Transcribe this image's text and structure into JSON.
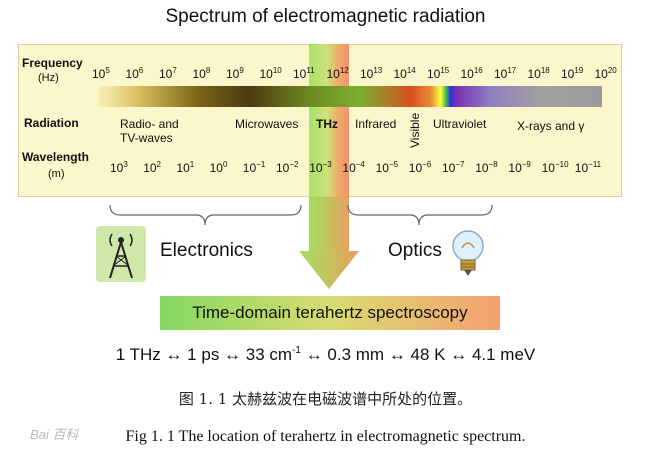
{
  "title": "Spectrum of electromagnetic radiation",
  "frequency_label": "Frequency",
  "frequency_unit": "(Hz)",
  "radiation_label": "Radiation",
  "wavelength_label": "Wavelength",
  "wavelength_unit": "(m)",
  "freq_ticks": [
    {
      "base": "10",
      "exp": "5"
    },
    {
      "base": "10",
      "exp": "6"
    },
    {
      "base": "10",
      "exp": "7"
    },
    {
      "base": "10",
      "exp": "8"
    },
    {
      "base": "10",
      "exp": "9"
    },
    {
      "base": "10",
      "exp": "10"
    },
    {
      "base": "10",
      "exp": "11"
    },
    {
      "base": "10",
      "exp": "12"
    },
    {
      "base": "10",
      "exp": "13"
    },
    {
      "base": "10",
      "exp": "14"
    },
    {
      "base": "10",
      "exp": "15"
    },
    {
      "base": "10",
      "exp": "16"
    },
    {
      "base": "10",
      "exp": "17"
    },
    {
      "base": "10",
      "exp": "18"
    },
    {
      "base": "10",
      "exp": "19"
    },
    {
      "base": "10",
      "exp": "20"
    }
  ],
  "wave_ticks": [
    {
      "base": "10",
      "exp": "3"
    },
    {
      "base": "10",
      "exp": "2"
    },
    {
      "base": "10",
      "exp": "1"
    },
    {
      "base": "10",
      "exp": "0"
    },
    {
      "base": "10",
      "exp": "−1"
    },
    {
      "base": "10",
      "exp": "−2"
    },
    {
      "base": "10",
      "exp": "−3"
    },
    {
      "base": "10",
      "exp": "−4"
    },
    {
      "base": "10",
      "exp": "−5"
    },
    {
      "base": "10",
      "exp": "−6"
    },
    {
      "base": "10",
      "exp": "−7"
    },
    {
      "base": "10",
      "exp": "−8"
    },
    {
      "base": "10",
      "exp": "−9"
    },
    {
      "base": "10",
      "exp": "−10"
    },
    {
      "base": "10",
      "exp": "−11"
    }
  ],
  "radiation": {
    "radio": "Radio- and",
    "tv": "TV-waves",
    "microwaves": "Microwaves",
    "thz": "THz",
    "infrared": "Infrared",
    "visible": "Visible",
    "ultraviolet": "Ultraviolet",
    "xray": "X-rays and γ"
  },
  "electronics": "Electronics",
  "optics": "Optics",
  "tdts": "Time-domain terahertz spectroscopy",
  "conversion": {
    "part1": "1 THz ↔ 1 ps ↔ 33 cm",
    "exp": "-1",
    "part2": " ↔ 0.3 mm ↔ 48 K ↔ 4.1 meV"
  },
  "caption_cn": "图 1. 1 太赫兹波在电磁波谱中所处的位置。",
  "caption_en": "Fig 1. 1 The location of terahertz in electromagnetic spectrum.",
  "watermark": "Bai 百科"
}
